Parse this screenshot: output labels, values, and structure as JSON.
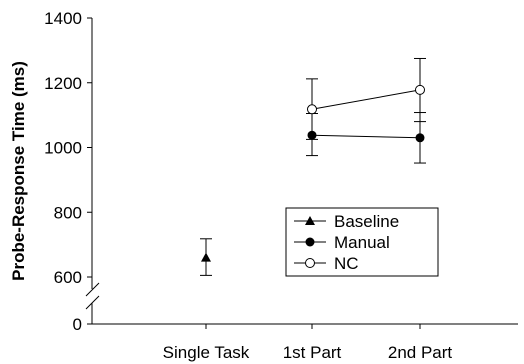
{
  "chart_data": {
    "type": "scatter",
    "title": "",
    "xlabel": "",
    "ylabel": "Probe-Response Time (ms)",
    "categories": [
      "Single Task",
      "1st Part",
      "2nd Part"
    ],
    "y_ticks": [
      0,
      600,
      800,
      1000,
      1200,
      1400
    ],
    "ylim": [
      550,
      1400
    ],
    "axis_break": true,
    "grid": false,
    "legend_position": "lower-center",
    "series": [
      {
        "name": "Baseline",
        "marker": "filled-triangle",
        "connected": false,
        "points": [
          {
            "category": "Single Task",
            "y": 660,
            "err_low": 605,
            "err_high": 718
          }
        ]
      },
      {
        "name": "Manual",
        "marker": "filled-circle",
        "connected": true,
        "points": [
          {
            "category": "1st Part",
            "y": 1038,
            "err_low": 975,
            "err_high": 1105
          },
          {
            "category": "2nd Part",
            "y": 1030,
            "err_low": 952,
            "err_high": 1108
          }
        ]
      },
      {
        "name": "NC",
        "marker": "open-circle",
        "connected": true,
        "points": [
          {
            "category": "1st Part",
            "y": 1118,
            "err_low": 1025,
            "err_high": 1212
          },
          {
            "category": "2nd Part",
            "y": 1178,
            "err_low": 1080,
            "err_high": 1275
          }
        ]
      }
    ]
  }
}
